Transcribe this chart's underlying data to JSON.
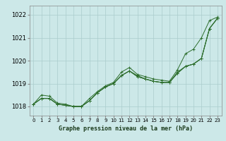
{
  "title": "Graphe pression niveau de la mer (hPa)",
  "bg_color": "#cce8e8",
  "grid_color": "#aacccc",
  "line_color": "#2d6e2d",
  "xlim": [
    -0.5,
    23.5
  ],
  "ylim": [
    1017.6,
    1022.4
  ],
  "xticks": [
    0,
    1,
    2,
    3,
    4,
    5,
    6,
    7,
    8,
    9,
    10,
    11,
    12,
    13,
    14,
    15,
    16,
    17,
    18,
    19,
    20,
    21,
    22,
    23
  ],
  "yticks": [
    1018,
    1019,
    1020,
    1021,
    1022
  ],
  "series": [
    [
      1018.1,
      1018.5,
      1018.45,
      1018.15,
      1018.1,
      1018.0,
      1018.0,
      1018.35,
      1018.65,
      1018.9,
      1019.05,
      1019.5,
      1019.7,
      1019.4,
      1019.3,
      1019.2,
      1019.15,
      1019.1,
      1019.6,
      1020.3,
      1020.5,
      1021.0,
      1021.75,
      1021.9
    ],
    [
      1018.1,
      1018.35,
      1018.35,
      1018.1,
      1018.05,
      1018.0,
      1018.0,
      1018.25,
      1018.6,
      1018.85,
      1019.0,
      1019.35,
      1019.55,
      1019.35,
      1019.2,
      1019.1,
      1019.05,
      1019.05,
      1019.5,
      1019.75,
      1019.85,
      1020.1,
      1021.4,
      1021.85
    ],
    [
      1018.1,
      1018.35,
      1018.35,
      1018.1,
      1018.05,
      1018.0,
      1018.0,
      1018.25,
      1018.6,
      1018.85,
      1019.0,
      1019.35,
      1019.55,
      1019.3,
      1019.2,
      1019.1,
      1019.05,
      1019.05,
      1019.45,
      1019.75,
      1019.85,
      1020.1,
      1021.4,
      1021.85
    ],
    [
      1018.1,
      1018.35,
      1018.35,
      1018.1,
      1018.05,
      1018.0,
      1018.0,
      1018.25,
      1018.6,
      1018.85,
      1019.0,
      1019.35,
      1019.55,
      1019.3,
      1019.2,
      1019.1,
      1019.05,
      1019.05,
      1019.45,
      1019.75,
      1019.85,
      1020.1,
      1021.4,
      1021.85
    ]
  ]
}
